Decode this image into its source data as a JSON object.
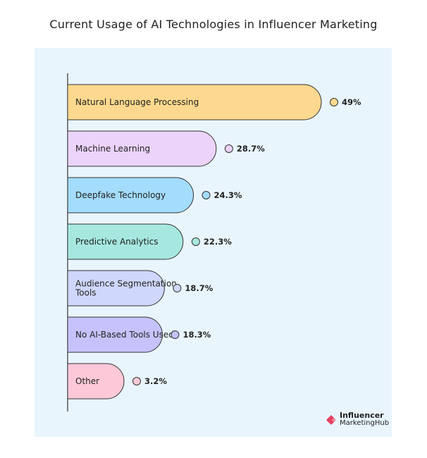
{
  "title": "Current Usage of AI Technologies in Influencer Marketing",
  "chart_data": {
    "type": "bar",
    "orientation": "horizontal",
    "title": "Current Usage of AI Technologies in Influencer Marketing",
    "unit": "%",
    "categories": [
      [
        "Natural Language Processing"
      ],
      [
        "Machine Learning"
      ],
      [
        "Deepfake Technology"
      ],
      [
        "Predictive Analytics"
      ],
      [
        "Audience Segmentation",
        "Tools"
      ],
      [
        "No AI-Based Tools Used"
      ],
      [
        "Other"
      ]
    ],
    "values": [
      49,
      28.7,
      24.3,
      22.3,
      18.7,
      18.3,
      3.2
    ],
    "value_labels": [
      "49%",
      "28.7%",
      "24.3%",
      "22.3%",
      "18.7%",
      "18.3%",
      "3.2%"
    ],
    "colors": [
      "#fcd98e",
      "#ebd3fa",
      "#a3dcfc",
      "#a6e8e0",
      "#cfd8fc",
      "#c6c3fc",
      "#fdc9d8"
    ],
    "xlim": [
      0,
      49
    ]
  },
  "brand": {
    "line1": "Influencer",
    "line2": "MarketingHub",
    "color": "#e4415f"
  }
}
